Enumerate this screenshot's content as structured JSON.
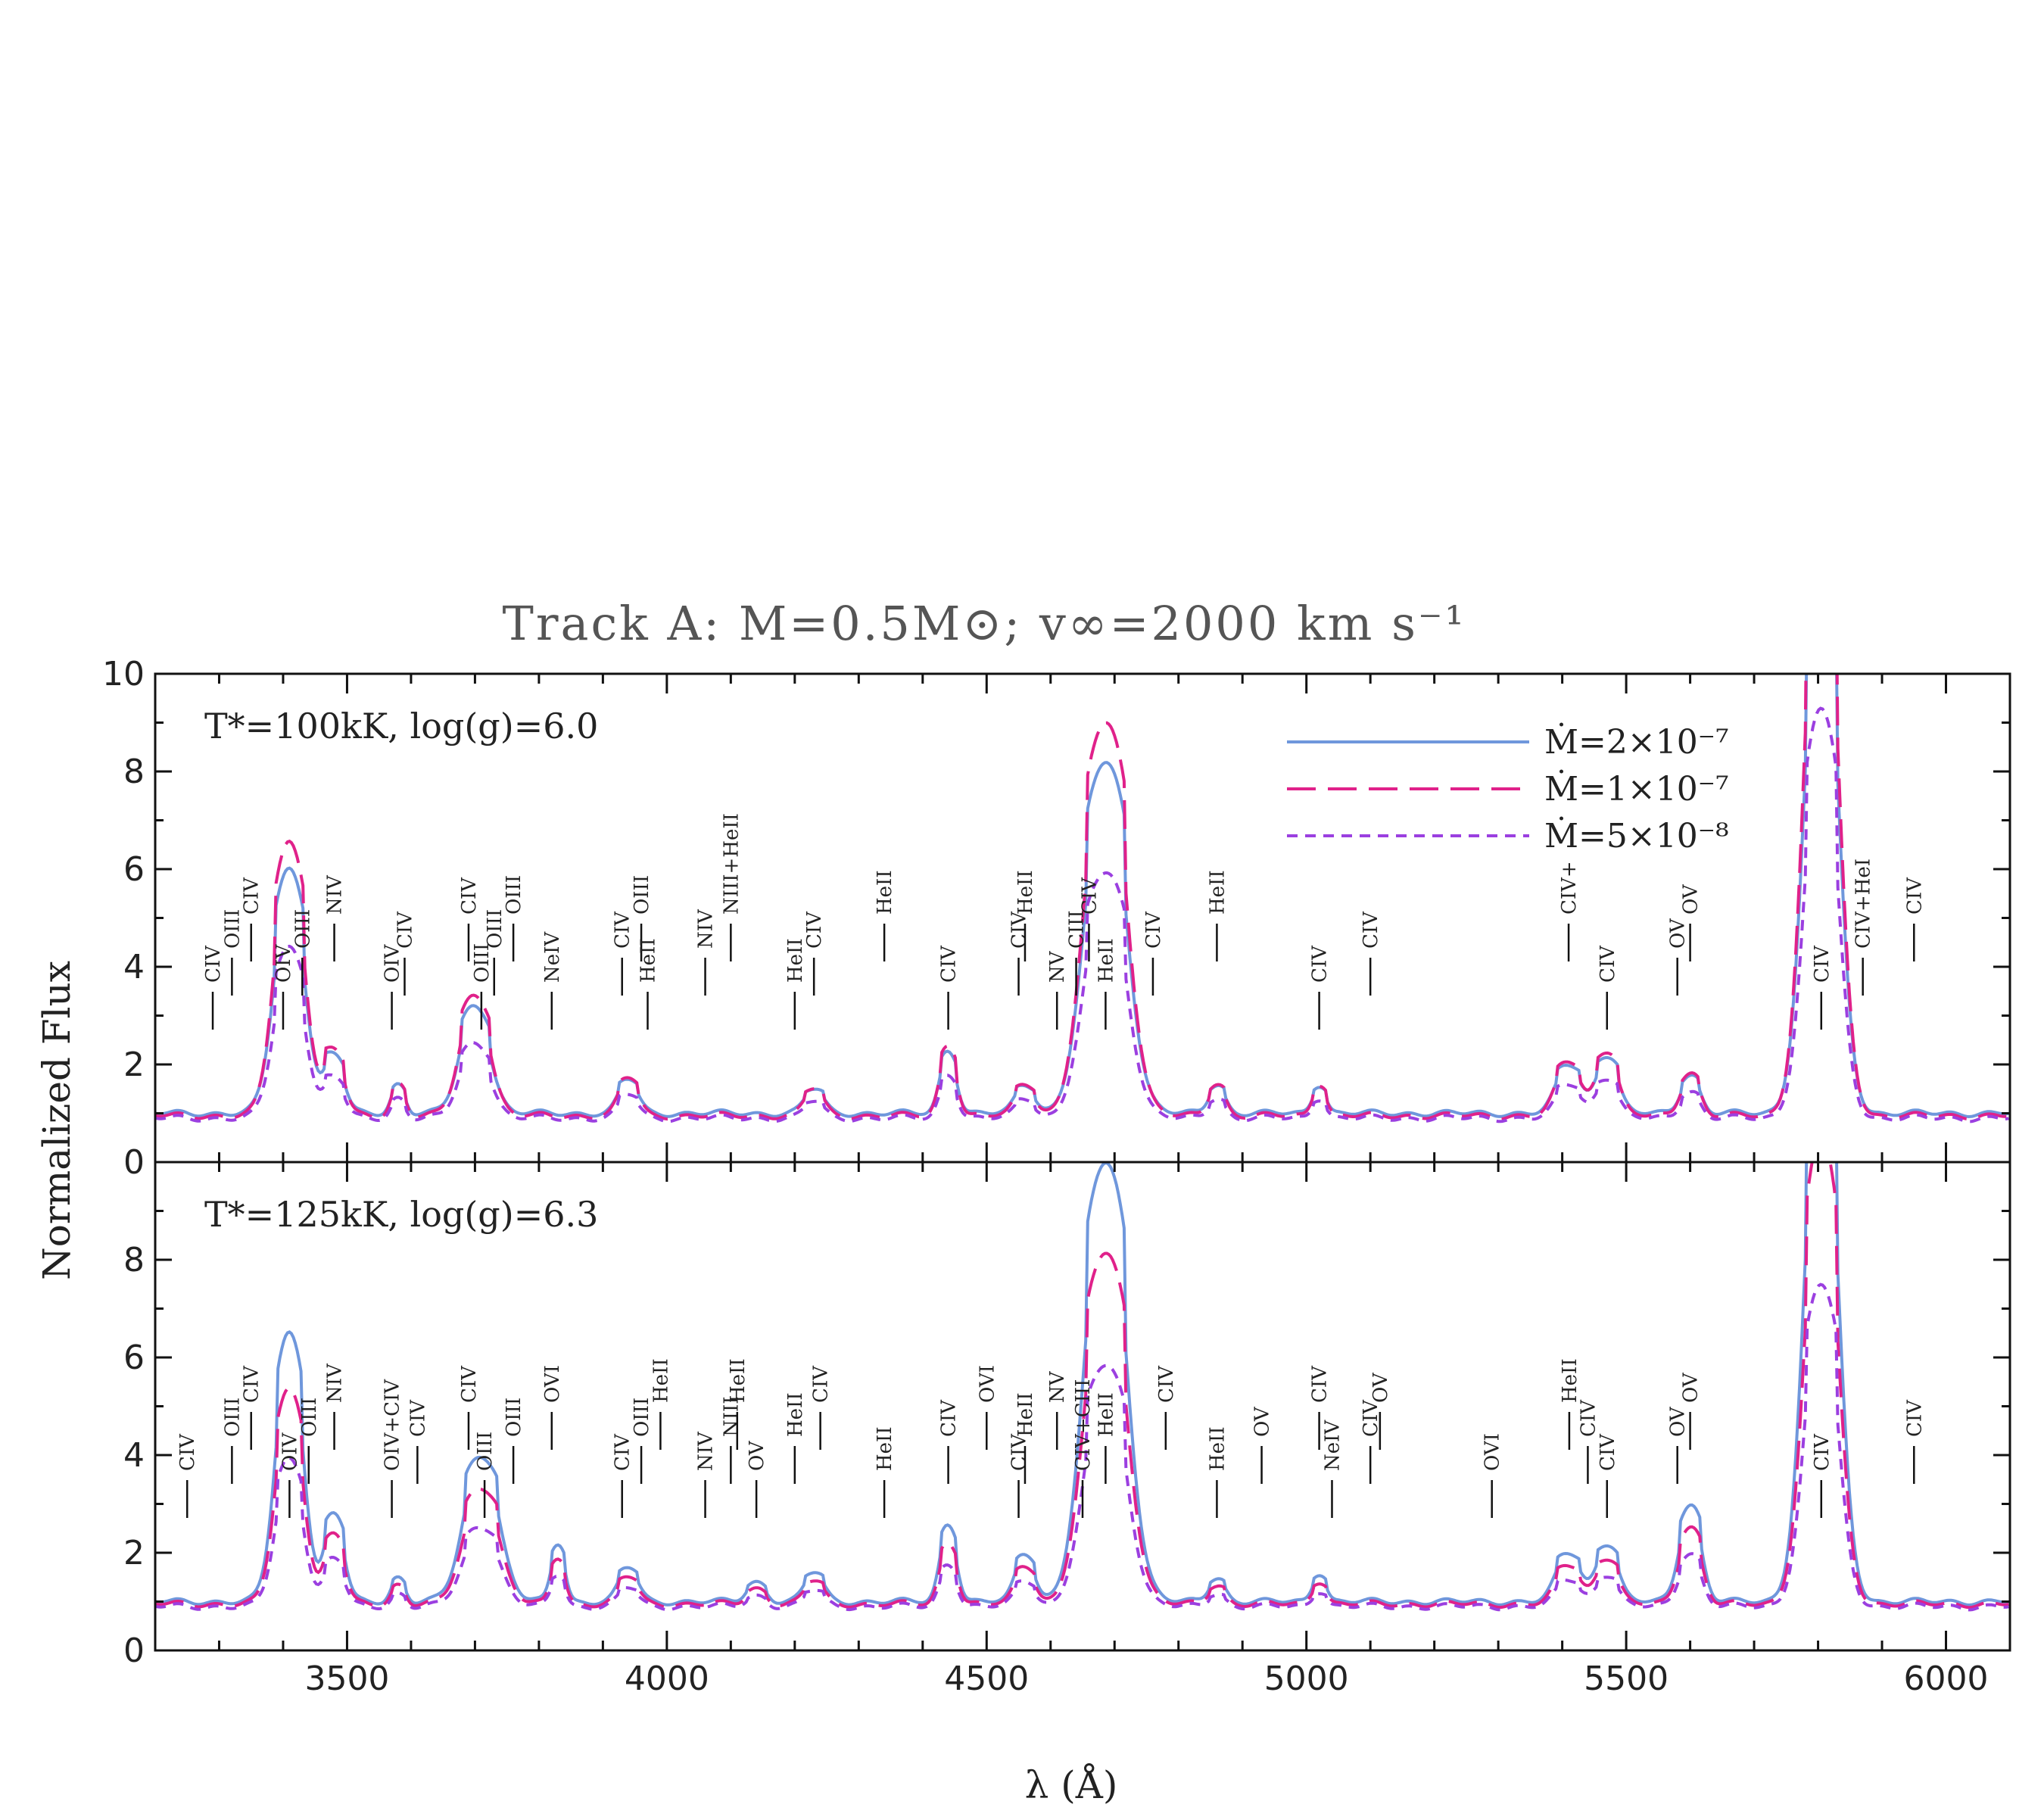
{
  "chart_data": {
    "type": "line",
    "title": "Track A: M=0.5M⊙; v∞=2000 km s⁻¹",
    "xlabel": "λ (Å)",
    "ylabel": "Normalized Flux",
    "xlim": [
      3200,
      6100
    ],
    "x_ticks": [
      3500,
      4000,
      4500,
      5000,
      5500,
      6000
    ],
    "legend_placement": "top-right",
    "grid": false,
    "series_styles": [
      {
        "name": "Ṁ=2×10⁻⁷",
        "color": "#6f97dc",
        "dash": "solid"
      },
      {
        "name": "Ṁ=1×10⁻⁷",
        "color": "#e0218a",
        "dash": "long-dash"
      },
      {
        "name": "Ṁ=5×10⁻⁸",
        "color": "#9b3fe0",
        "dash": "short-dash"
      }
    ],
    "panels": [
      {
        "label": "T*=100kK, log(g)=6.0",
        "ylim": [
          0,
          10
        ],
        "y_ticks": [
          0,
          2,
          4,
          6,
          8,
          10
        ],
        "line_labels": [
          {
            "text": "CIV",
            "wavelength": 3290
          },
          {
            "text": "OIII",
            "wavelength": 3320
          },
          {
            "text": "CIV",
            "wavelength": 3350
          },
          {
            "text": "OIV",
            "wavelength": 3400
          },
          {
            "text": "OIII",
            "wavelength": 3430
          },
          {
            "text": "NIV",
            "wavelength": 3480
          },
          {
            "text": "OIV",
            "wavelength": 3570
          },
          {
            "text": "CIV",
            "wavelength": 3590
          },
          {
            "text": "CIV",
            "wavelength": 3690
          },
          {
            "text": "OIII",
            "wavelength": 3710
          },
          {
            "text": "OIII",
            "wavelength": 3730
          },
          {
            "text": "OIII",
            "wavelength": 3760
          },
          {
            "text": "NeIV",
            "wavelength": 3820
          },
          {
            "text": "CIV",
            "wavelength": 3930
          },
          {
            "text": "OIII",
            "wavelength": 3960
          },
          {
            "text": "HeII",
            "wavelength": 3970
          },
          {
            "text": "NIV",
            "wavelength": 4060
          },
          {
            "text": "NIII+HeII",
            "wavelength": 4100
          },
          {
            "text": "HeII",
            "wavelength": 4200
          },
          {
            "text": "CIV",
            "wavelength": 4230
          },
          {
            "text": "HeII",
            "wavelength": 4340
          },
          {
            "text": "CIV",
            "wavelength": 4440
          },
          {
            "text": "CIV",
            "wavelength": 4550
          },
          {
            "text": "HeII",
            "wavelength": 4560
          },
          {
            "text": "NV",
            "wavelength": 4610
          },
          {
            "text": "CIII",
            "wavelength": 4640
          },
          {
            "text": "CIV",
            "wavelength": 4660
          },
          {
            "text": "HeII",
            "wavelength": 4686
          },
          {
            "text": "CIV",
            "wavelength": 4760
          },
          {
            "text": "HeII",
            "wavelength": 4860
          },
          {
            "text": "CIV",
            "wavelength": 5020
          },
          {
            "text": "CIV",
            "wavelength": 5100
          },
          {
            "text": "CIV+",
            "wavelength": 5410
          },
          {
            "text": "CIV",
            "wavelength": 5470
          },
          {
            "text": "OV",
            "wavelength": 5580
          },
          {
            "text": "OV",
            "wavelength": 5600
          },
          {
            "text": "CIV",
            "wavelength": 5805
          },
          {
            "text": "CIV+HeI",
            "wavelength": 5870
          },
          {
            "text": "CIV",
            "wavelength": 5950
          }
        ]
      },
      {
        "label": "T*=125kK, log(g)=6.3",
        "ylim": [
          0,
          10
        ],
        "y_ticks": [
          0,
          2,
          4,
          6,
          8
        ],
        "line_labels": [
          {
            "text": "CIV",
            "wavelength": 3250
          },
          {
            "text": "OIII",
            "wavelength": 3320
          },
          {
            "text": "CIV",
            "wavelength": 3350
          },
          {
            "text": "OIV",
            "wavelength": 3410
          },
          {
            "text": "OIII",
            "wavelength": 3440
          },
          {
            "text": "NIV",
            "wavelength": 3480
          },
          {
            "text": "OIV+CIV",
            "wavelength": 3570
          },
          {
            "text": "CIV",
            "wavelength": 3610
          },
          {
            "text": "CIV",
            "wavelength": 3690
          },
          {
            "text": "OIII",
            "wavelength": 3715
          },
          {
            "text": "OIII",
            "wavelength": 3760
          },
          {
            "text": "OVI",
            "wavelength": 3820
          },
          {
            "text": "CIV",
            "wavelength": 3930
          },
          {
            "text": "OIII",
            "wavelength": 3960
          },
          {
            "text": "HeII",
            "wavelength": 3990
          },
          {
            "text": "NIV",
            "wavelength": 4060
          },
          {
            "text": "NIII",
            "wavelength": 4100
          },
          {
            "text": "HeII",
            "wavelength": 4110
          },
          {
            "text": "OV",
            "wavelength": 4140
          },
          {
            "text": "HeII",
            "wavelength": 4200
          },
          {
            "text": "CIV",
            "wavelength": 4240
          },
          {
            "text": "HeII",
            "wavelength": 4340
          },
          {
            "text": "CIV",
            "wavelength": 4440
          },
          {
            "text": "OVI",
            "wavelength": 4500
          },
          {
            "text": "CIV",
            "wavelength": 4550
          },
          {
            "text": "HeII",
            "wavelength": 4560
          },
          {
            "text": "NV",
            "wavelength": 4610
          },
          {
            "text": "CIV+CIII",
            "wavelength": 4650
          },
          {
            "text": "HeII",
            "wavelength": 4686
          },
          {
            "text": "CIV",
            "wavelength": 4780
          },
          {
            "text": "HeII",
            "wavelength": 4860
          },
          {
            "text": "OV",
            "wavelength": 4930
          },
          {
            "text": "CIV",
            "wavelength": 5020
          },
          {
            "text": "NeIV",
            "wavelength": 5040
          },
          {
            "text": "CIV",
            "wavelength": 5100
          },
          {
            "text": "OV",
            "wavelength": 5115
          },
          {
            "text": "OVI",
            "wavelength": 5290
          },
          {
            "text": "CIV",
            "wavelength": 5440
          },
          {
            "text": "HeII",
            "wavelength": 5411
          },
          {
            "text": "CIV",
            "wavelength": 5470
          },
          {
            "text": "OV",
            "wavelength": 5580
          },
          {
            "text": "OV",
            "wavelength": 5600
          },
          {
            "text": "CIV",
            "wavelength": 5805
          },
          {
            "text": "CIV",
            "wavelength": 5950
          }
        ]
      }
    ]
  }
}
